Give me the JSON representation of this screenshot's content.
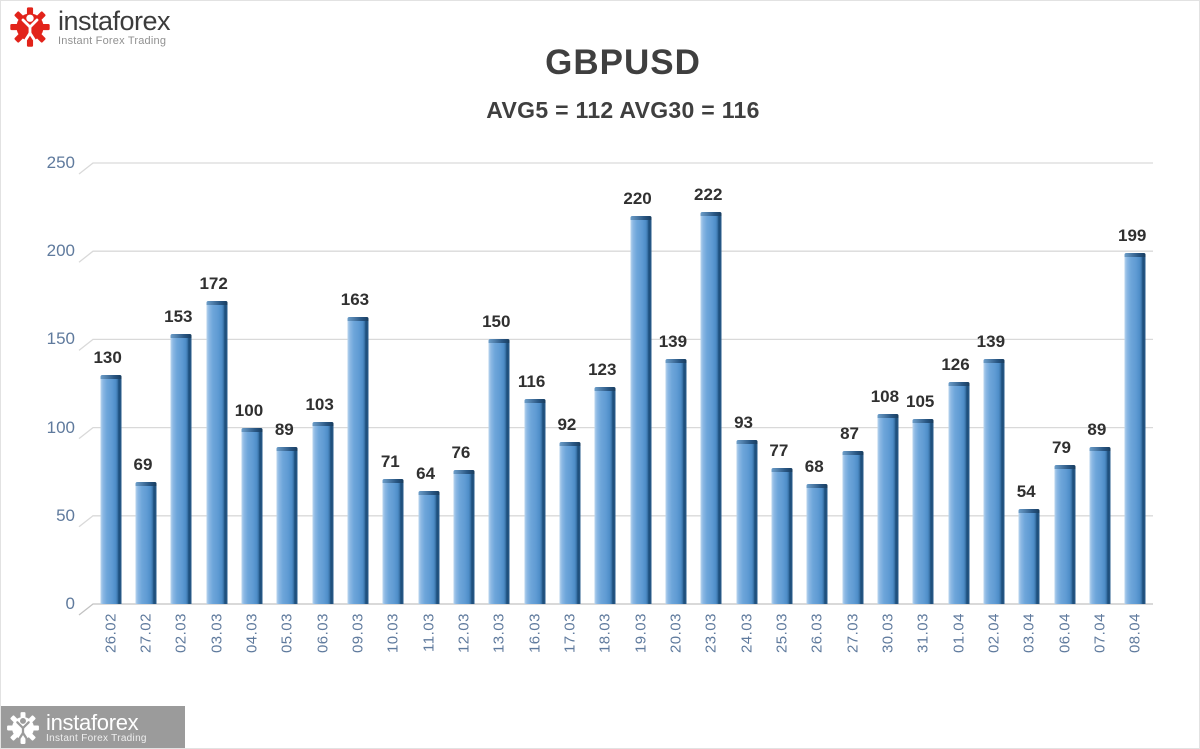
{
  "brand": {
    "name": "instaforex",
    "tagline": "Instant Forex Trading",
    "accent_red": "#e2231a",
    "logo_box_gray": "#9b9b9b"
  },
  "chart_data": {
    "type": "bar",
    "title": "GBPUSD",
    "subtitle": "AVG5 = 112 AVG30 = 116",
    "avg5": 112,
    "avg30": 116,
    "categories": [
      "26.02",
      "27.02",
      "02.03",
      "03.03",
      "04.03",
      "05.03",
      "06.03",
      "09.03",
      "10.03",
      "11.03",
      "12.03",
      "13.03",
      "16.03",
      "17.03",
      "18.03",
      "19.03",
      "20.03",
      "23.03",
      "24.03",
      "25.03",
      "26.03",
      "27.03",
      "30.03",
      "31.03",
      "01.04",
      "02.04",
      "03.04",
      "06.04",
      "07.04",
      "08.04"
    ],
    "values": [
      130,
      69,
      153,
      172,
      100,
      89,
      103,
      163,
      71,
      64,
      76,
      150,
      116,
      92,
      123,
      220,
      139,
      222,
      93,
      77,
      68,
      87,
      108,
      105,
      126,
      139,
      54,
      79,
      89,
      199
    ],
    "ylim": [
      0,
      250
    ],
    "yticks": [
      0,
      50,
      100,
      150,
      200,
      250
    ],
    "grid": true,
    "legend_position": "none",
    "data_labels": true,
    "colors": {
      "bar_main": "#5b9bd5",
      "bar_light": "#b9d5ee",
      "bar_dark": "#1f4e79",
      "grid": "#d9d9d9",
      "baseline": "#c2c2c2",
      "axis_text": "#5f7a9d",
      "value_text": "#303030",
      "title_text": "#3f3f3f"
    }
  }
}
